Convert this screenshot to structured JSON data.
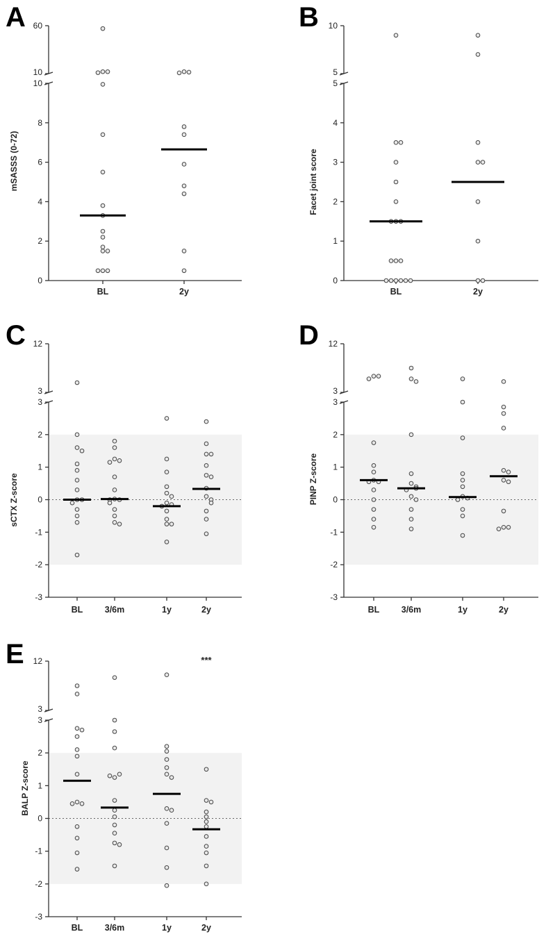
{
  "colors": {
    "band": "#f2f2f2",
    "dot_fill": "#e8e8e8",
    "dot_stroke": "#444444",
    "median": "#000000"
  },
  "chart_data": [
    {
      "panel": "A",
      "type": "scatter",
      "ylabel": "mSASSS (0-72)",
      "categories": [
        "BL",
        "2y"
      ],
      "axis_break": {
        "lower": [
          0,
          10
        ],
        "upper": [
          10,
          60
        ]
      },
      "yticks_lower": [
        "0",
        "2",
        "4",
        "6",
        "8",
        "10"
      ],
      "yticks_upper": [
        "10",
        "60"
      ],
      "series": [
        {
          "name": "BL",
          "median": 3.3,
          "values": [
            57,
            12,
            12,
            11,
            9.95,
            7.4,
            5.5,
            3.8,
            3.3,
            2.5,
            2.2,
            1.7,
            1.5,
            1.5,
            0.5,
            0.5,
            0.5
          ]
        },
        {
          "name": "2y",
          "median": 6.65,
          "values": [
            12,
            11.5,
            10.8,
            7.8,
            7.4,
            5.9,
            4.8,
            4.4,
            1.5,
            0.5
          ]
        }
      ]
    },
    {
      "panel": "B",
      "type": "scatter",
      "ylabel": "Facet joint score",
      "categories": [
        "BL",
        "2y"
      ],
      "axis_break": {
        "lower": [
          0,
          5
        ],
        "upper": [
          5,
          10
        ]
      },
      "yticks_lower": [
        "0",
        "1",
        "2",
        "3",
        "4",
        "5"
      ],
      "yticks_upper": [
        "5",
        "10"
      ],
      "series": [
        {
          "name": "BL",
          "median": 1.5,
          "values": [
            9,
            3.5,
            3.5,
            3,
            2.5,
            2,
            1.5,
            1.5,
            1.5,
            0.5,
            0.5,
            0.5,
            0,
            0,
            0,
            0,
            0,
            0
          ]
        },
        {
          "name": "2y",
          "median": 2.5,
          "values": [
            9,
            7,
            3.5,
            3,
            3,
            2,
            1,
            0,
            0
          ]
        }
      ]
    },
    {
      "panel": "C",
      "type": "scatter",
      "ylabel": "sCTX Z-score",
      "categories": [
        "BL",
        "3/6m",
        "1y",
        "2y"
      ],
      "reference_band": [
        -2,
        2
      ],
      "reference_line": 0,
      "axis_break": {
        "lower": [
          -3,
          3
        ],
        "upper": [
          3,
          12
        ]
      },
      "yticks_lower": [
        "-3",
        "-2",
        "-1",
        "0",
        "1",
        "2",
        "3"
      ],
      "yticks_upper": [
        "3",
        "12"
      ],
      "series": [
        {
          "name": "BL",
          "median": 0.0,
          "values": [
            4.8,
            2.0,
            1.6,
            1.5,
            1.1,
            0.9,
            0.6,
            0.3,
            0.0,
            0.0,
            -0.1,
            -0.3,
            -0.5,
            -0.7,
            -1.7
          ]
        },
        {
          "name": "3/6m",
          "median": 0.02,
          "values": [
            1.8,
            1.6,
            1.25,
            1.2,
            1.15,
            0.7,
            0.3,
            0.02,
            0.0,
            0.0,
            -0.1,
            -0.3,
            -0.5,
            -0.7,
            -0.75
          ]
        },
        {
          "name": "1y",
          "median": -0.2,
          "values": [
            2.5,
            1.25,
            0.85,
            0.4,
            0.2,
            0.1,
            -0.1,
            -0.15,
            -0.2,
            -0.35,
            -0.6,
            -0.75,
            -0.75,
            -1.3
          ]
        },
        {
          "name": "2y",
          "median": 0.33,
          "values": [
            2.4,
            1.72,
            1.4,
            1.4,
            1.05,
            0.75,
            0.7,
            0.35,
            0.1,
            0.0,
            -0.1,
            -0.35,
            -0.6,
            -1.05
          ]
        }
      ]
    },
    {
      "panel": "D",
      "type": "scatter",
      "ylabel": "PINP Z-score",
      "categories": [
        "BL",
        "3/6m",
        "1y",
        "2y"
      ],
      "reference_band": [
        -2,
        2
      ],
      "reference_line": 0,
      "axis_break": {
        "lower": [
          -3,
          3
        ],
        "upper": [
          3,
          12
        ]
      },
      "yticks_lower": [
        "-3",
        "-2",
        "-1",
        "0",
        "1",
        "2",
        "3"
      ],
      "yticks_upper": [
        "3",
        "12"
      ],
      "series": [
        {
          "name": "BL",
          "median": 0.6,
          "values": [
            6.0,
            6.0,
            5.5,
            1.75,
            1.05,
            0.85,
            0.6,
            0.55,
            0.55,
            0.3,
            0.0,
            -0.3,
            -0.6,
            -0.85
          ]
        },
        {
          "name": "3/6m",
          "median": 0.35,
          "values": [
            7.5,
            5.5,
            5.0,
            2.0,
            0.8,
            0.5,
            0.4,
            0.35,
            0.3,
            0.1,
            0.0,
            -0.3,
            -0.6,
            -0.9
          ]
        },
        {
          "name": "1y",
          "median": 0.08,
          "values": [
            5.5,
            3.0,
            1.9,
            0.8,
            0.6,
            0.4,
            0.1,
            0.05,
            0.0,
            -0.3,
            -0.5,
            -1.1
          ]
        },
        {
          "name": "2y",
          "median": 0.72,
          "values": [
            5.0,
            2.85,
            2.65,
            2.2,
            0.9,
            0.85,
            0.6,
            0.55,
            -0.35,
            -0.85,
            -0.85,
            -0.9
          ]
        }
      ]
    },
    {
      "panel": "E",
      "type": "scatter",
      "ylabel": "BALP Z-score",
      "categories": [
        "BL",
        "3/6m",
        "1y",
        "2y"
      ],
      "reference_band": [
        -2,
        2
      ],
      "reference_line": 0,
      "annotation": {
        "category": "2y",
        "text": "***"
      },
      "axis_break": {
        "lower": [
          -3,
          3
        ],
        "upper": [
          3,
          12
        ]
      },
      "yticks_lower": [
        "-3",
        "-2",
        "-1",
        "0",
        "1",
        "2",
        "3"
      ],
      "yticks_upper": [
        "3",
        "12"
      ],
      "series": [
        {
          "name": "BL",
          "median": 1.15,
          "values": [
            7.5,
            6.0,
            2.75,
            2.7,
            2.5,
            2.1,
            1.9,
            1.35,
            0.5,
            0.45,
            0.45,
            -0.25,
            -0.6,
            -1.05,
            -1.55
          ]
        },
        {
          "name": "3/6m",
          "median": 0.33,
          "values": [
            9.0,
            3.0,
            2.65,
            2.15,
            1.25,
            1.35,
            1.3,
            0.55,
            0.25,
            0.05,
            -0.2,
            -0.45,
            -0.75,
            -0.8,
            -1.45
          ]
        },
        {
          "name": "1y",
          "median": 0.75,
          "values": [
            9.5,
            2.2,
            2.05,
            1.8,
            1.55,
            1.35,
            1.25,
            0.3,
            0.25,
            -0.15,
            -0.9,
            -1.5,
            -2.05
          ]
        },
        {
          "name": "2y",
          "median": -0.33,
          "values": [
            1.5,
            0.55,
            0.5,
            0.2,
            0.05,
            -0.1,
            -0.25,
            -0.55,
            -0.85,
            -1.05,
            -1.45,
            -2.0
          ]
        }
      ]
    }
  ]
}
